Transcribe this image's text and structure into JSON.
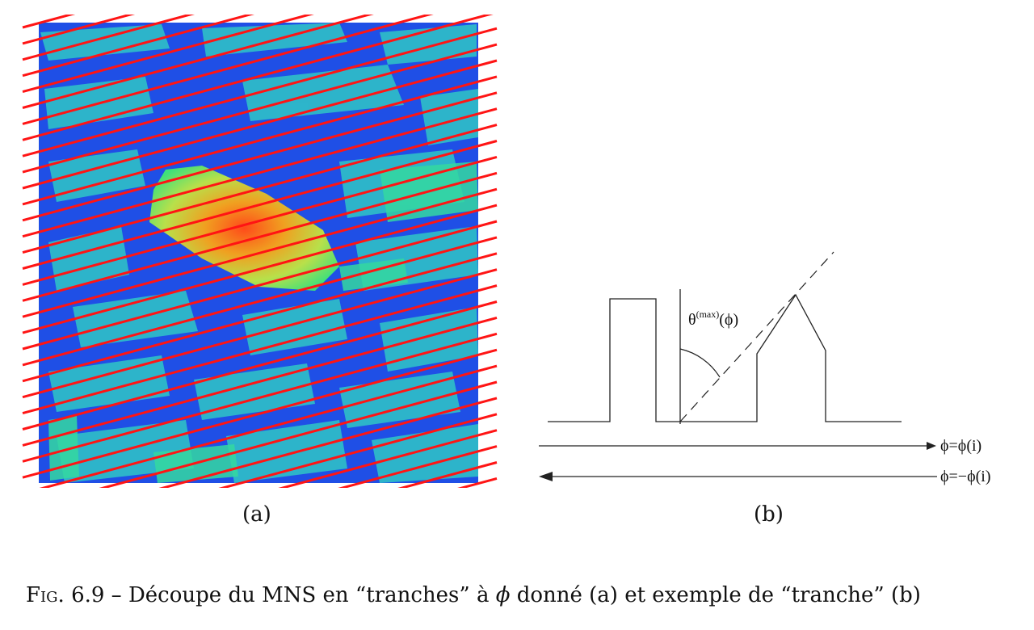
{
  "panel_a": {
    "sublabel": "(a)"
  },
  "panel_b": {
    "sublabel": "(b)",
    "theta_symbol": "θ",
    "theta_superscript": "(max)",
    "theta_argument": "(ϕ)",
    "arrow_forward_label": "ϕ=ϕ(i)",
    "arrow_backward_label": "ϕ=−ϕ(i)"
  },
  "caption": {
    "prefix": "Fig.",
    "number": "6.9",
    "text_part1": " – Découpe du MNS en “tranches” à ",
    "symbol": "ϕ",
    "text_part2": " donné (a) et exemple de “tranche” (b)"
  }
}
